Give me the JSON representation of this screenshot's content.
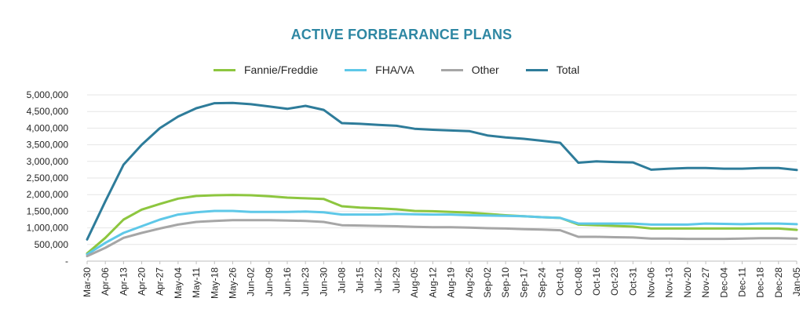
{
  "chart_data": {
    "type": "line",
    "title": "ACTIVE FORBEARANCE PLANS",
    "xlabel": "",
    "ylabel": "",
    "ylim": [
      0,
      5000000
    ],
    "y_ticks": [
      0,
      500000,
      1000000,
      1500000,
      2000000,
      2500000,
      3000000,
      3500000,
      4000000,
      4500000,
      5000000
    ],
    "y_tick_labels": [
      "-",
      "500,000",
      "1,000,000",
      "1,500,000",
      "2,000,000",
      "2,500,000",
      "3,000,000",
      "3,500,000",
      "4,000,000",
      "4,500,000",
      "5,000,000"
    ],
    "x_tick_labels": [
      "Mar-30",
      "Apr-06",
      "Apr-13",
      "Apr-20",
      "Apr-27",
      "May-04",
      "May-11",
      "May-18",
      "May-26",
      "Jun-02",
      "Jun-09",
      "Jun-16",
      "Jun-23",
      "Jun-30",
      "Jul-08",
      "Jul-15",
      "Jul-22",
      "Jul-29",
      "Aug-05",
      "Aug-12",
      "Aug-19",
      "Aug-26",
      "Sep-02",
      "Sep-10",
      "Sep-17",
      "Sep-24",
      "Oct-01",
      "Oct-08",
      "Oct-16",
      "Oct-23",
      "Oct-31",
      "Nov-06",
      "Nov-13",
      "Nov-20",
      "Nov-27",
      "Dec-04",
      "Dec-11",
      "Dec-18",
      "Dec-28",
      "Jan-05"
    ],
    "legend_position": "top-center",
    "series": [
      {
        "name": "Fannie/Freddie",
        "color": "#8dc63f",
        "values": [
          230000,
          700000,
          1250000,
          1550000,
          1720000,
          1880000,
          1960000,
          1980000,
          1990000,
          1980000,
          1950000,
          1910000,
          1890000,
          1870000,
          1650000,
          1610000,
          1590000,
          1560000,
          1510000,
          1500000,
          1480000,
          1460000,
          1420000,
          1380000,
          1350000,
          1320000,
          1300000,
          1100000,
          1080000,
          1060000,
          1040000,
          980000,
          980000,
          980000,
          980000,
          980000,
          980000,
          980000,
          980000,
          940000
        ]
      },
      {
        "name": "FHA/VA",
        "color": "#5ec8e8",
        "values": [
          200000,
          550000,
          850000,
          1050000,
          1250000,
          1400000,
          1470000,
          1510000,
          1510000,
          1480000,
          1480000,
          1480000,
          1490000,
          1470000,
          1400000,
          1400000,
          1400000,
          1420000,
          1410000,
          1400000,
          1400000,
          1380000,
          1370000,
          1360000,
          1350000,
          1320000,
          1300000,
          1130000,
          1130000,
          1130000,
          1130000,
          1100000,
          1100000,
          1100000,
          1130000,
          1120000,
          1110000,
          1130000,
          1130000,
          1110000
        ]
      },
      {
        "name": "Other",
        "color": "#a6a6a6",
        "values": [
          150000,
          400000,
          700000,
          850000,
          980000,
          1100000,
          1180000,
          1210000,
          1230000,
          1230000,
          1230000,
          1220000,
          1210000,
          1180000,
          1080000,
          1070000,
          1060000,
          1050000,
          1030000,
          1020000,
          1020000,
          1010000,
          990000,
          980000,
          960000,
          950000,
          930000,
          730000,
          730000,
          720000,
          710000,
          680000,
          680000,
          670000,
          670000,
          670000,
          680000,
          690000,
          690000,
          680000
        ]
      },
      {
        "name": "Total",
        "color": "#2e7c9a",
        "values": [
          650000,
          1800000,
          2900000,
          3500000,
          4000000,
          4350000,
          4600000,
          4750000,
          4760000,
          4720000,
          4650000,
          4580000,
          4670000,
          4550000,
          4150000,
          4130000,
          4100000,
          4070000,
          3980000,
          3950000,
          3930000,
          3910000,
          3780000,
          3720000,
          3680000,
          3620000,
          3560000,
          2960000,
          3000000,
          2980000,
          2970000,
          2750000,
          2780000,
          2800000,
          2800000,
          2780000,
          2780000,
          2800000,
          2800000,
          2740000
        ]
      }
    ]
  }
}
